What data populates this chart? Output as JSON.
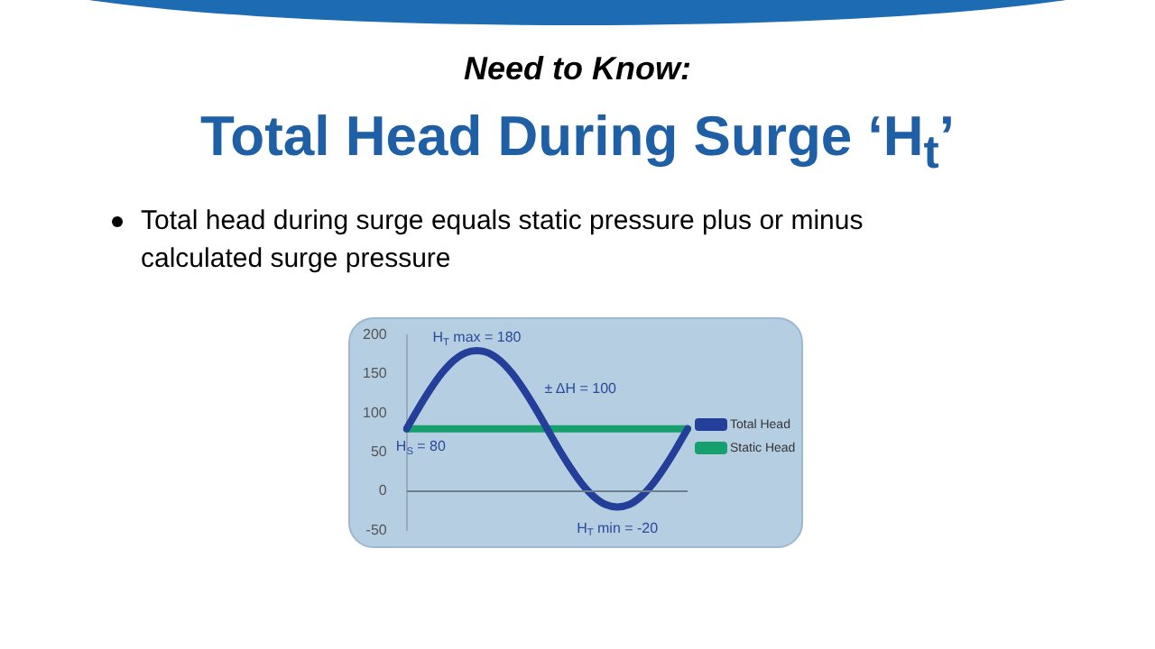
{
  "chart_data": {
    "type": "line",
    "subtitle": "Need to Know:",
    "title": "Total Head During Surge ‘H$_{t}$’",
    "annotations": [
      "Total head during surge equals static pressure plus  or minus calculated surge pressure",
      {
        "text": "H$_{T}$ max = 180",
        "y": 180
      },
      "± ΔH = 100",
      {
        "text": "H$_{S}$ = 80",
        "y": 80
      },
      {
        "text": "H$_{T}$ min = -20",
        "y": -20
      }
    ],
    "categories": [
      null,
      null,
      null,
      null,
      null,
      null,
      null,
      null,
      null,
      null,
      null,
      null,
      null,
      null,
      null,
      null,
      null,
      null,
      null,
      null,
      null,
      null,
      null,
      null,
      null
    ],
    "series": [
      {
        "name": "Total Head",
        "color": "#233f9a",
        "values": [
          80,
          106,
          130,
          151,
          167,
          177,
          180,
          177,
          167,
          151,
          130,
          106,
          80,
          54,
          30,
          9,
          -7,
          -17,
          -20,
          -17,
          -7,
          9,
          30,
          54,
          80
        ]
      },
      {
        "name": "Static Head",
        "color": "#17a06e",
        "values": [
          80,
          80,
          80,
          80,
          80,
          80,
          80,
          80,
          80,
          80,
          80,
          80,
          80,
          80,
          80,
          80,
          80,
          80,
          80,
          80,
          80,
          80,
          80,
          80,
          80
        ]
      }
    ],
    "ylim": [
      -50,
      200
    ],
    "yticks": [
      -50,
      0,
      50,
      100,
      150,
      200
    ],
    "legend": "right",
    "marker": "none",
    "line_style": "solid",
    "tick_labels": "y"
  }
}
